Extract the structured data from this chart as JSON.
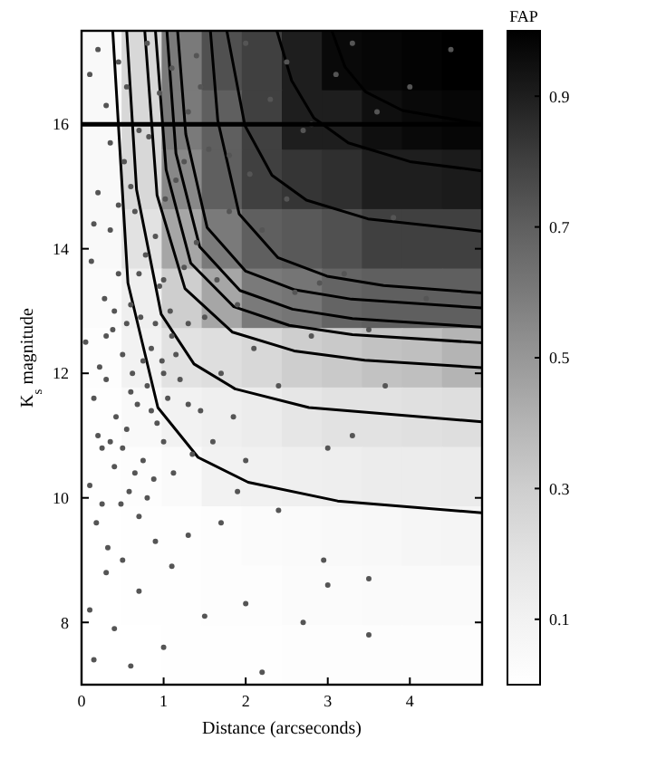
{
  "chart_data": [
    {
      "type": "heatmap",
      "clabel": "FAP",
      "clim": [
        0,
        1
      ],
      "cticks": [
        0.1,
        0.3,
        0.5,
        0.7,
        0.9
      ],
      "categories": [
        null,
        null,
        null,
        null,
        null,
        null,
        null,
        null,
        null,
        null
      ],
      "y_categories": [
        null,
        null,
        null,
        null,
        null,
        null,
        null,
        null,
        null,
        null,
        null
      ],
      "cells": [
        [
          0.05,
          0.25,
          0.6,
          0.75,
          0.8,
          0.9,
          0.97,
          0.98,
          0.99,
          1.0
        ],
        [
          0.05,
          0.25,
          0.6,
          0.7,
          0.8,
          0.9,
          0.9,
          0.95,
          0.97,
          0.98
        ],
        [
          0.05,
          0.25,
          0.55,
          0.7,
          0.8,
          0.83,
          0.85,
          0.9,
          0.9,
          0.91
        ],
        [
          0.05,
          0.2,
          0.45,
          0.6,
          0.7,
          0.72,
          0.75,
          0.8,
          0.8,
          0.8
        ],
        [
          0.03,
          0.12,
          0.3,
          0.45,
          0.6,
          0.62,
          0.68,
          0.7,
          0.7,
          0.7
        ],
        [
          0.02,
          0.1,
          0.2,
          0.22,
          0.25,
          0.3,
          0.32,
          0.35,
          0.36,
          0.4
        ],
        [
          0.01,
          0.05,
          0.1,
          0.12,
          0.14,
          0.18,
          0.2,
          0.2,
          0.21,
          0.22
        ],
        [
          0.01,
          0.02,
          0.04,
          0.1,
          0.11,
          0.12,
          0.13,
          0.14,
          0.14,
          0.15
        ],
        [
          0.0,
          0.01,
          0.01,
          0.02,
          0.03,
          0.04,
          0.05,
          0.06,
          0.07,
          0.08
        ],
        [
          0.0,
          0.01,
          0.01,
          0.02,
          0.02,
          0.03,
          0.03,
          0.04,
          0.04,
          0.04
        ],
        [
          0.0,
          0.0,
          0.01,
          0.01,
          0.01,
          0.02,
          0.02,
          0.02,
          0.02,
          0.02
        ]
      ]
    },
    {
      "type": "scatter",
      "xlabel": "Distance (arcseconds)",
      "ylabel": "K$_{s}$ magnitude",
      "xlim": [
        0,
        4.88
      ],
      "ylim": [
        7,
        17.5
      ],
      "xticks": [
        0,
        1,
        2,
        3,
        4
      ],
      "yticks": [
        8,
        10,
        12,
        14,
        16
      ],
      "marker": "circle",
      "ref_lines": [
        {
          "axis": "y",
          "value": 16,
          "color": "#000000"
        }
      ],
      "series": [
        {
          "color": "#555555",
          "x": [
            0.05,
            0.1,
            0.12,
            0.15,
            0.18,
            0.2,
            0.22,
            0.25,
            0.28,
            0.3,
            0.32,
            0.35,
            0.38,
            0.4,
            0.42,
            0.45,
            0.48,
            0.5,
            0.52,
            0.55,
            0.58,
            0.6,
            0.62,
            0.65,
            0.68,
            0.7,
            0.72,
            0.75,
            0.78,
            0.8,
            0.82,
            0.85,
            0.88,
            0.9,
            0.92,
            0.95,
            0.98,
            1.0,
            1.02,
            1.05,
            1.08,
            1.1,
            1.12,
            1.15,
            1.2,
            1.25,
            1.3,
            1.35,
            1.4,
            1.45,
            1.5,
            1.55,
            1.6,
            1.65,
            1.7,
            1.8,
            1.85,
            1.9,
            2.0,
            2.05,
            2.1,
            2.2,
            2.3,
            2.4,
            2.5,
            2.6,
            2.7,
            2.8,
            2.9,
            3.0,
            3.1,
            3.2,
            3.3,
            3.5,
            3.7,
            3.8,
            4.0,
            4.2,
            4.5,
            3.6,
            0.1,
            0.15,
            0.3,
            0.4,
            0.5,
            0.6,
            0.7,
            0.9,
            1.0,
            1.1,
            1.3,
            1.5,
            1.7,
            2.0,
            2.2,
            2.7,
            2.95,
            3.0,
            3.5,
            3.5,
            2.4,
            1.9,
            0.1,
            0.2,
            0.3,
            0.45,
            0.55,
            0.7,
            0.8,
            0.95,
            1.1,
            1.3,
            1.4,
            1.45,
            1.8,
            2.0,
            2.5,
            2.8,
            3.3,
            1.25,
            0.6,
            0.35,
            0.2,
            0.3,
            0.4,
            0.5,
            0.6,
            0.7,
            0.8,
            0.9,
            1.0,
            0.15,
            0.25,
            0.45,
            0.55,
            0.65,
            0.75,
            0.85,
            1.15,
            1.3,
            1.0,
            0.35
          ],
          "values": [
            12.5,
            10.2,
            13.8,
            11.6,
            9.6,
            14.9,
            12.1,
            10.8,
            13.2,
            11.9,
            9.2,
            14.3,
            12.7,
            10.5,
            11.3,
            13.6,
            9.9,
            12.3,
            15.4,
            11.1,
            10.1,
            13.1,
            12.0,
            14.6,
            11.5,
            9.7,
            12.9,
            10.6,
            13.9,
            11.8,
            15.8,
            12.4,
            10.3,
            14.2,
            11.2,
            13.4,
            12.2,
            10.9,
            14.8,
            11.6,
            13.0,
            12.6,
            10.4,
            15.1,
            11.9,
            13.7,
            12.8,
            10.7,
            14.1,
            11.4,
            12.9,
            15.6,
            10.9,
            13.5,
            12.0,
            14.6,
            11.3,
            13.1,
            10.6,
            15.2,
            12.4,
            14.3,
            16.4,
            11.8,
            14.8,
            13.3,
            15.9,
            12.6,
            13.45,
            10.8,
            16.8,
            13.6,
            11.0,
            12.7,
            11.8,
            14.5,
            16.6,
            13.2,
            17.2,
            16.2,
            8.2,
            7.4,
            8.8,
            7.9,
            9.0,
            7.3,
            8.5,
            9.3,
            7.6,
            8.9,
            9.4,
            8.1,
            9.6,
            8.3,
            7.2,
            8.0,
            9.0,
            8.6,
            8.7,
            7.8,
            9.8,
            10.1,
            16.8,
            17.2,
            16.3,
            17.0,
            16.6,
            15.9,
            17.3,
            16.5,
            16.9,
            16.2,
            17.1,
            16.6,
            15.5,
            17.3,
            17.0,
            16.0,
            17.3,
            15.4,
            15.0,
            15.7,
            11.0,
            12.6,
            13.0,
            10.8,
            11.7,
            13.6,
            10.0,
            12.8,
            13.5,
            14.4,
            9.9,
            14.7,
            12.8,
            10.4,
            12.2,
            11.4,
            12.3,
            11.5,
            12.0,
            10.9
          ]
        },
        {
          "type": "line",
          "marker": "none",
          "color": "#000000",
          "x": [
            0.38,
            0.565,
            0.93,
            1.42,
            2.03,
            3.12,
            4.88
          ],
          "values": [
            17.5,
            13.45,
            11.45,
            10.65,
            10.25,
            9.95,
            9.76
          ]
        },
        {
          "type": "line",
          "marker": "none",
          "color": "#000000",
          "x": [
            0.55,
            0.67,
            0.97,
            1.37,
            1.87,
            2.77,
            4.88
          ],
          "values": [
            17.5,
            14.95,
            12.95,
            12.15,
            11.75,
            11.45,
            11.22
          ]
        },
        {
          "type": "line",
          "marker": "none",
          "color": "#000000",
          "x": [
            0.77,
            0.92,
            1.26,
            1.84,
            2.59,
            3.45,
            4.88
          ],
          "values": [
            17.5,
            14.86,
            13.36,
            12.66,
            12.36,
            12.21,
            12.09
          ]
        },
        {
          "type": "line",
          "marker": "none",
          "color": "#000000",
          "x": [
            0.9,
            1.03,
            1.33,
            1.855,
            2.53,
            3.3,
            4.88
          ],
          "values": [
            17.5,
            15.27,
            13.77,
            13.07,
            12.77,
            12.62,
            12.49
          ]
        },
        {
          "type": "line",
          "marker": "none",
          "color": "#000000",
          "x": [
            1.04,
            1.15,
            1.44,
            1.93,
            2.57,
            3.3,
            4.88
          ],
          "values": [
            17.5,
            15.53,
            14.03,
            13.33,
            13.03,
            12.88,
            12.74
          ]
        },
        {
          "type": "line",
          "marker": "none",
          "color": "#000000",
          "x": [
            1.17,
            1.27,
            1.53,
            2.0,
            2.6,
            3.29,
            4.88
          ],
          "values": [
            17.5,
            15.84,
            14.34,
            13.64,
            13.34,
            13.19,
            13.05
          ]
        },
        {
          "type": "line",
          "marker": "none",
          "color": "#000000",
          "x": [
            1.57,
            1.66,
            1.92,
            2.39,
            2.99,
            3.68,
            4.88
          ],
          "values": [
            17.5,
            16.06,
            14.56,
            13.86,
            13.56,
            13.41,
            13.29
          ]
        },
        {
          "type": "line",
          "marker": "none",
          "color": "#000000",
          "x": [
            1.77,
            1.99,
            2.32,
            2.74,
            3.49,
            4.88
          ],
          "values": [
            17.5,
            15.98,
            15.18,
            14.78,
            14.48,
            14.28
          ]
        },
        {
          "type": "line",
          "marker": "none",
          "color": "#000000",
          "x": [
            2.38,
            2.56,
            2.83,
            3.25,
            4.0,
            4.88
          ],
          "values": [
            17.5,
            16.7,
            16.1,
            15.7,
            15.4,
            15.25
          ]
        },
        {
          "type": "line",
          "marker": "none",
          "color": "#000000",
          "x": [
            3.05,
            3.21,
            3.46,
            3.91,
            4.88
          ],
          "values": [
            17.5,
            16.92,
            16.52,
            16.22,
            16.0
          ]
        }
      ]
    }
  ]
}
